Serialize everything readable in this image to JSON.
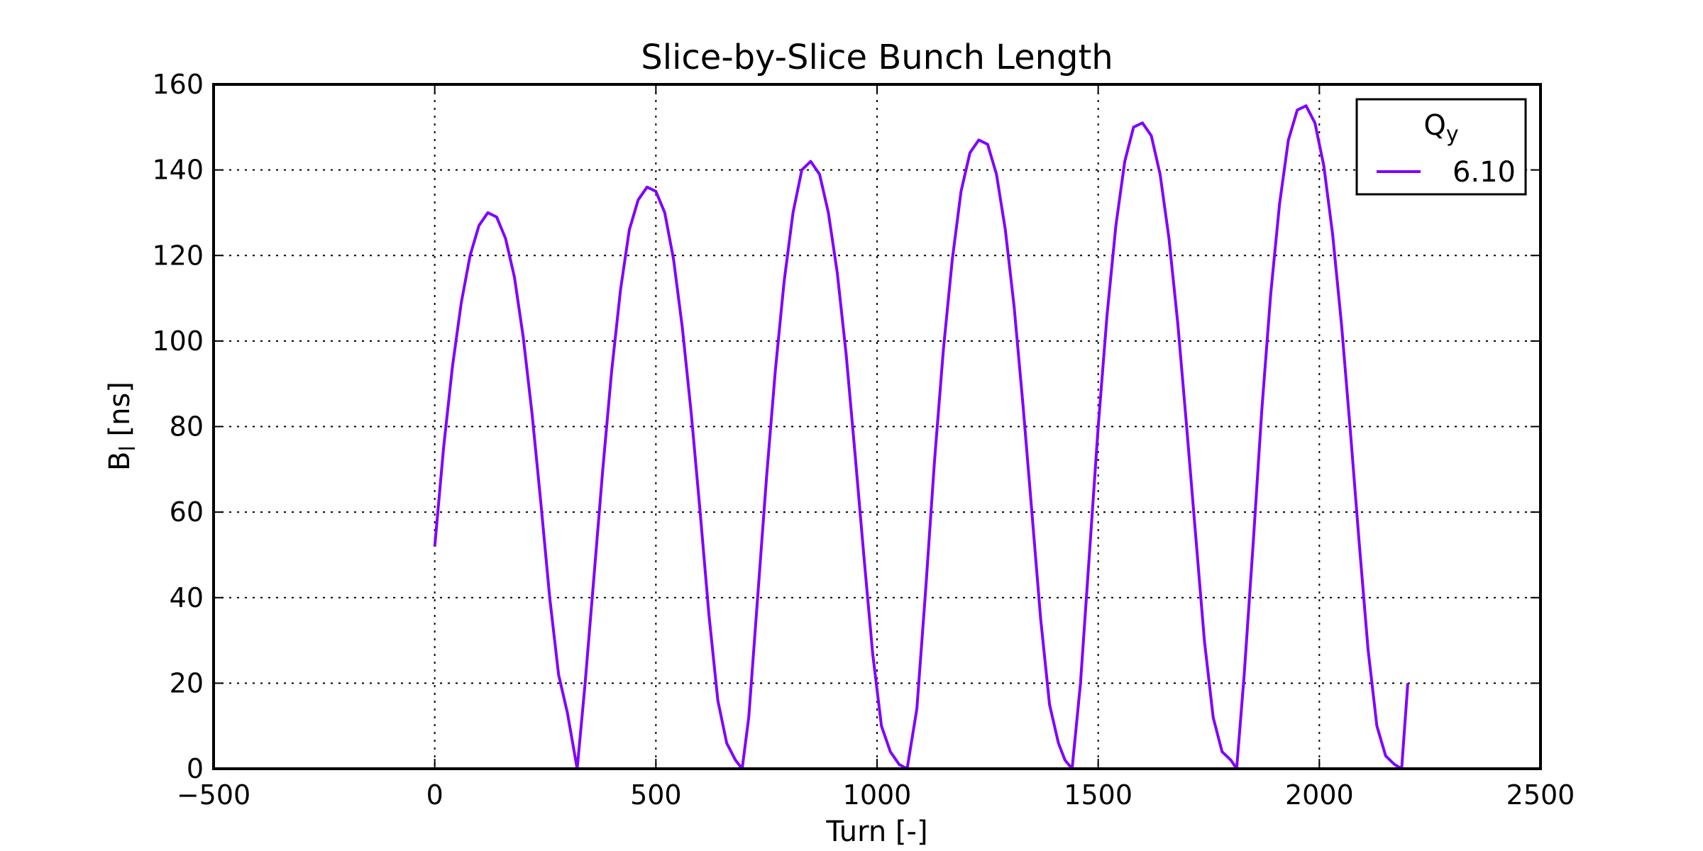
{
  "chart_data": {
    "type": "line",
    "title": "Slice-by-Slice Bunch Length",
    "xlabel": "Turn [-]",
    "ylabel_main": "B",
    "ylabel_sub": "l",
    "ylabel_rest": " [ns]",
    "xlim": [
      -500,
      2500
    ],
    "ylim": [
      0,
      160
    ],
    "xticks": [
      -500,
      0,
      500,
      1000,
      1500,
      2000,
      2500
    ],
    "xtick_labels": [
      "−500",
      "0",
      "500",
      "1000",
      "1500",
      "2000",
      "2500"
    ],
    "yticks": [
      0,
      20,
      40,
      60,
      80,
      100,
      120,
      140,
      160
    ],
    "ytick_labels": [
      "0",
      "20",
      "40",
      "60",
      "80",
      "100",
      "120",
      "140",
      "160"
    ],
    "grid": true,
    "legend": {
      "placement": "top-right",
      "title_main": "Q",
      "title_sub": "y",
      "entries": [
        "6.10"
      ]
    },
    "series": [
      {
        "name": "6.10",
        "color": "#7f00ff",
        "x": [
          0,
          20,
          40,
          60,
          80,
          100,
          120,
          140,
          160,
          180,
          200,
          220,
          240,
          260,
          280,
          300,
          322,
          340,
          360,
          380,
          400,
          420,
          440,
          460,
          480,
          500,
          520,
          540,
          560,
          580,
          600,
          620,
          640,
          660,
          680,
          695,
          710,
          730,
          750,
          770,
          790,
          810,
          830,
          850,
          870,
          890,
          910,
          930,
          950,
          970,
          990,
          1010,
          1030,
          1050,
          1068,
          1090,
          1110,
          1130,
          1150,
          1170,
          1190,
          1210,
          1230,
          1250,
          1270,
          1290,
          1310,
          1330,
          1350,
          1370,
          1390,
          1410,
          1425,
          1441,
          1460,
          1480,
          1500,
          1520,
          1540,
          1560,
          1580,
          1600,
          1620,
          1640,
          1660,
          1680,
          1700,
          1720,
          1740,
          1760,
          1780,
          1800,
          1813,
          1830,
          1850,
          1870,
          1890,
          1910,
          1930,
          1950,
          1970,
          1990,
          2010,
          2030,
          2050,
          2070,
          2090,
          2110,
          2130,
          2150,
          2170,
          2186,
          2200
        ],
        "y": [
          52,
          75,
          94,
          109,
          120,
          127,
          130,
          129,
          124,
          115,
          101,
          83,
          62,
          40,
          22,
          13,
          0,
          20,
          45,
          70,
          93,
          112,
          126,
          133,
          136,
          135,
          130,
          119,
          103,
          83,
          60,
          36,
          16,
          6,
          2,
          0,
          12,
          40,
          68,
          93,
          114,
          130,
          140,
          142,
          139,
          130,
          116,
          97,
          74,
          50,
          27,
          10,
          4,
          1,
          0,
          14,
          42,
          72,
          98,
          119,
          135,
          144,
          147,
          146,
          139,
          126,
          108,
          85,
          60,
          35,
          15,
          6,
          2,
          0,
          20,
          50,
          80,
          106,
          127,
          142,
          150,
          151,
          148,
          139,
          124,
          104,
          80,
          55,
          30,
          12,
          4,
          2,
          0,
          22,
          52,
          84,
          111,
          132,
          147,
          154,
          155,
          151,
          141,
          125,
          104,
          79,
          53,
          28,
          10,
          3,
          1,
          0,
          20
        ]
      }
    ]
  }
}
